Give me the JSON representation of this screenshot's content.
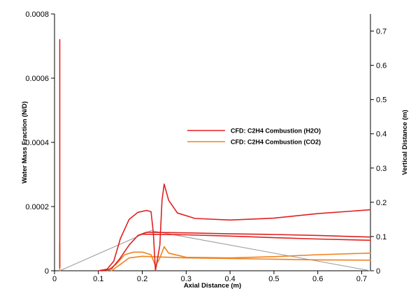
{
  "chart_data": {
    "type": "line",
    "xlabel": "Axial Distance (m)",
    "ylabel": "Water Mass Fraction (N/D)",
    "y2label": "Vertical Distance (m)",
    "xlim": [
      0,
      0.72
    ],
    "ylim": [
      0,
      0.0008
    ],
    "y2lim": [
      0,
      0.75
    ],
    "x_ticks": [
      "0",
      "0.1",
      "0.2",
      "0.3",
      "0.4",
      "0.5",
      "0.6",
      "0.7"
    ],
    "y_ticks": [
      "0",
      "0.0002",
      "0.0004",
      "0.0006",
      "0.0008"
    ],
    "y2_ticks": [
      "0",
      "0.1",
      "0.2",
      "0.3",
      "0.4",
      "0.5",
      "0.6",
      "0.7"
    ],
    "grid": false,
    "legend_position": "center-right",
    "colors": {
      "h2o": "#e02020",
      "co2": "#f0821e",
      "geometry": "#999999"
    },
    "series": [
      {
        "name": "CFD: C2H4 Combustion (H2O)",
        "color": "#e02020",
        "segments": [
          [
            [
              0.012,
              1e-05
            ],
            [
              0.012,
              0.00072
            ]
          ],
          [
            [
              0.1,
              0.0
            ],
            [
              0.12,
              5e-06
            ],
            [
              0.135,
              3e-05
            ],
            [
              0.15,
              0.0001
            ],
            [
              0.17,
              0.00016
            ],
            [
              0.19,
              0.000182
            ],
            [
              0.21,
              0.000188
            ],
            [
              0.22,
              0.000184
            ],
            [
              0.225,
              0.00012
            ],
            [
              0.23,
              0.0
            ],
            [
              0.24,
              8e-05
            ],
            [
              0.245,
              0.00022
            ],
            [
              0.25,
              0.00027
            ],
            [
              0.26,
              0.00022
            ],
            [
              0.28,
              0.00018
            ],
            [
              0.32,
              0.000163
            ],
            [
              0.4,
              0.000158
            ],
            [
              0.5,
              0.000164
            ],
            [
              0.6,
              0.000178
            ],
            [
              0.72,
              0.00019
            ]
          ],
          [
            [
              0.11,
              0.0
            ],
            [
              0.13,
              6e-06
            ],
            [
              0.15,
              4e-05
            ],
            [
              0.17,
              8e-05
            ],
            [
              0.19,
              0.00011
            ],
            [
              0.21,
              0.00012
            ],
            [
              0.3,
              0.000118
            ],
            [
              0.4,
              0.000115
            ],
            [
              0.5,
              0.000113
            ],
            [
              0.6,
              0.00011
            ],
            [
              0.72,
              0.000105
            ]
          ],
          [
            [
              0.2,
              0.000114
            ],
            [
              0.3,
              0.000112
            ],
            [
              0.4,
              0.000108
            ],
            [
              0.5,
              0.000103
            ],
            [
              0.6,
              9.9e-05
            ],
            [
              0.72,
              9.5e-05
            ]
          ]
        ]
      },
      {
        "name": "CFD: C2H4 Combustion (CO2)",
        "color": "#f0821e",
        "segments": [
          [
            [
              0.012,
              0.0
            ],
            [
              0.012,
              8.5e-05
            ]
          ],
          [
            [
              0.12,
              0.0
            ],
            [
              0.14,
              2e-05
            ],
            [
              0.16,
              5e-05
            ],
            [
              0.18,
              5.8e-05
            ],
            [
              0.2,
              5.8e-05
            ],
            [
              0.22,
              5e-05
            ],
            [
              0.23,
              1.5e-05
            ],
            [
              0.24,
              4e-05
            ],
            [
              0.25,
              7.5e-05
            ],
            [
              0.26,
              5.5e-05
            ],
            [
              0.3,
              4.2e-05
            ],
            [
              0.4,
              4e-05
            ],
            [
              0.5,
              4.4e-05
            ],
            [
              0.6,
              5e-05
            ],
            [
              0.72,
              5.5e-05
            ]
          ],
          [
            [
              0.13,
              0.0
            ],
            [
              0.15,
              2e-05
            ],
            [
              0.17,
              4e-05
            ],
            [
              0.2,
              4.5e-05
            ],
            [
              0.3,
              4e-05
            ],
            [
              0.4,
              3.8e-05
            ],
            [
              0.5,
              3.6e-05
            ],
            [
              0.6,
              3.4e-05
            ],
            [
              0.72,
              3.3e-05
            ]
          ]
        ]
      },
      {
        "color": "#999999",
        "segments": [
          [
            [
              0.012,
              0.0
            ],
            [
              0.22,
              0.000125
            ],
            [
              0.72,
              0.0
            ]
          ]
        ]
      }
    ]
  }
}
